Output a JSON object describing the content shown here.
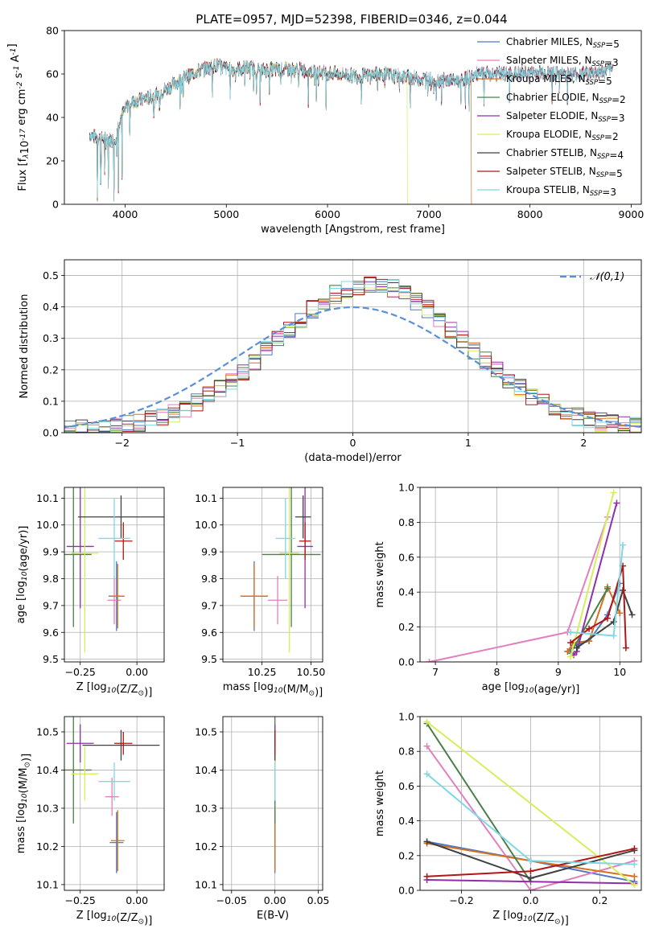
{
  "figure": {
    "title": "PLATE=0957, MJD=52398, FIBERID=0346, z=0.044"
  },
  "series_styles": [
    {
      "name": "Chabrier MILES, N$_{SSP}$=5",
      "color": "#4f78c7"
    },
    {
      "name": "Salpeter MILES, N$_{SSP}$=3",
      "color": "#e27fbf"
    },
    {
      "name": "Kroupa MILES, N$_{SSP}$=5",
      "color": "#d6701e"
    },
    {
      "name": "Chabrier ELODIE, N$_{SSP}$=2",
      "color": "#4a7f48"
    },
    {
      "name": "Salpeter ELODIE, N$_{SSP}$=3",
      "color": "#8f2faa"
    },
    {
      "name": "Kroupa ELODIE, N$_{SSP}$=2",
      "color": "#d4ef5a"
    },
    {
      "name": "Chabrier STELIB, N$_{SSP}$=4",
      "color": "#404040"
    },
    {
      "name": "Salpeter STELIB, N$_{SSP}$=5",
      "color": "#b01616"
    },
    {
      "name": "Kroupa STELIB, N$_{SSP}$=3",
      "color": "#7fd8e2"
    }
  ],
  "chart_data": [
    {
      "id": "spectrum",
      "type": "line",
      "title": "PLATE=0957, MJD=52398, FIBERID=0346, z=0.044",
      "xlabel": "wavelength [Angstrom, rest frame]",
      "ylabel": "Flux [f$_\\lambda$10$^{-17}$ erg cm$^{-2}$ s$^{-1}$ A$^{-1}$]",
      "xlim": [
        3400,
        9100
      ],
      "ylim": [
        0,
        80
      ],
      "xticks": [
        4000,
        5000,
        6000,
        7000,
        8000,
        9000
      ],
      "yticks": [
        0,
        20,
        40,
        60,
        80
      ],
      "legend": "top-right",
      "grid": false,
      "continuum_x": [
        3650,
        3700,
        3800,
        3900,
        3950,
        4050,
        4150,
        4300,
        4500,
        4700,
        4900,
        5050,
        5200,
        5350,
        5500,
        5700,
        5900,
        6100,
        6300,
        6500,
        6700,
        6900,
        7100,
        7300,
        7500,
        7700,
        7900,
        8100,
        8300,
        8500,
        8700,
        8820
      ],
      "continuum_y": [
        32,
        31,
        30,
        30,
        40,
        47,
        48,
        50,
        56,
        61,
        64,
        62,
        63,
        62,
        62,
        62,
        61,
        60,
        59,
        60,
        59,
        58,
        57,
        57,
        60,
        60,
        60,
        61,
        60,
        60,
        61,
        62
      ],
      "drops": [
        {
          "series": "Kroupa ELODIE, N$_{SSP}$=2",
          "x_start": 6790,
          "x_end": 9100,
          "y_after": 0
        },
        {
          "series": "Kroupa MILES, N$_{SSP}$=5",
          "x_start": 7420,
          "x_end": 9100,
          "y_after": 0
        }
      ]
    },
    {
      "id": "residuals",
      "type": "histogram",
      "xlabel": "(data-model)/error",
      "ylabel": "Normed distribution",
      "xlim": [
        -2.5,
        2.5
      ],
      "ylim": [
        0,
        0.55
      ],
      "xticks": [
        -2,
        -1,
        0,
        1,
        2
      ],
      "yticks": [
        0.0,
        0.1,
        0.2,
        0.3,
        0.4,
        0.5
      ],
      "grid": true,
      "bin_width": 0.1,
      "reference": {
        "name": "$\\mathcal{N}(0,1)$",
        "mean": 0,
        "sigma": 1,
        "color": "#5b8fd8",
        "legend": "top-right"
      }
    },
    {
      "id": "age_vs_Z",
      "type": "errorbar",
      "xlabel": "Z [log$_{10}$(Z/Z$_\\odot$)]",
      "ylabel": "age  [log$_{10}$(age/yr)]",
      "xlim": [
        -0.32,
        0.12
      ],
      "ylim": [
        9.49,
        10.14
      ],
      "xticks": [
        -0.25,
        0.0
      ],
      "yticks": [
        9.5,
        9.6,
        9.7,
        9.8,
        9.9,
        10.0,
        10.1
      ],
      "grid": true,
      "points": [
        {
          "series": "Chabrier MILES, N$_{SSP}$=5",
          "x": -0.09,
          "xerr": 0.035,
          "y": 9.735,
          "yerr": 0.13
        },
        {
          "series": "Salpeter MILES, N$_{SSP}$=3",
          "x": -0.1,
          "xerr": 0.03,
          "y": 9.72,
          "yerr": 0.09
        },
        {
          "series": "Kroupa MILES, N$_{SSP}$=5",
          "x": -0.085,
          "xerr": 0.03,
          "y": 9.735,
          "yerr": 0.12
        },
        {
          "series": "Chabrier ELODIE, N$_{SSP}$=2",
          "x": -0.28,
          "xerr": 0.08,
          "y": 9.89,
          "yerr": 0.27
        },
        {
          "series": "Salpeter ELODIE, N$_{SSP}$=3",
          "x": -0.25,
          "xerr": 0.06,
          "y": 9.92,
          "yerr": 0.23
        },
        {
          "series": "Kroupa ELODIE, N$_{SSP}$=2",
          "x": -0.23,
          "xerr": 0.06,
          "y": 9.895,
          "yerr": 0.37
        },
        {
          "series": "Chabrier STELIB, N$_{SSP}$=4",
          "x": -0.07,
          "xerr": 0.19,
          "y": 10.03,
          "yerr": 0.08
        },
        {
          "series": "Salpeter STELIB, N$_{SSP}$=5",
          "x": -0.06,
          "xerr": 0.04,
          "y": 9.94,
          "yerr": 0.07
        },
        {
          "series": "Kroupa STELIB, N$_{SSP}$=3",
          "x": -0.1,
          "xerr": 0.07,
          "y": 9.95,
          "yerr": 0.15
        }
      ]
    },
    {
      "id": "age_vs_mass",
      "type": "errorbar",
      "xlabel": "mass [log$_{10}$(M/M$_\\odot$)]",
      "ylabel": "",
      "xlim": [
        10.05,
        10.56
      ],
      "ylim": [
        9.49,
        10.14
      ],
      "xticks": [
        10.25,
        10.5
      ],
      "yticks": [
        9.5,
        9.6,
        9.7,
        9.8,
        9.9,
        10.0,
        10.1
      ],
      "grid": true,
      "points": [
        {
          "series": "Chabrier MILES, N$_{SSP}$=5",
          "x": 10.21,
          "xerr": 0.07,
          "y": 9.735,
          "yerr": 0.13
        },
        {
          "series": "Salpeter MILES, N$_{SSP}$=3",
          "x": 10.33,
          "xerr": 0.05,
          "y": 9.72,
          "yerr": 0.09
        },
        {
          "series": "Kroupa MILES, N$_{SSP}$=5",
          "x": 10.21,
          "xerr": 0.07,
          "y": 9.735,
          "yerr": 0.12
        },
        {
          "series": "Chabrier ELODIE, N$_{SSP}$=2",
          "x": 10.4,
          "xerr": 0.15,
          "y": 9.89,
          "yerr": 0.27
        },
        {
          "series": "Salpeter ELODIE, N$_{SSP}$=3",
          "x": 10.47,
          "xerr": 0.04,
          "y": 9.92,
          "yerr": 0.23
        },
        {
          "series": "Kroupa ELODIE, N$_{SSP}$=2",
          "x": 10.39,
          "xerr": 0.05,
          "y": 9.895,
          "yerr": 0.37
        },
        {
          "series": "Chabrier STELIB, N$_{SSP}$=4",
          "x": 10.46,
          "xerr": 0.04,
          "y": 10.03,
          "yerr": 0.08
        },
        {
          "series": "Salpeter STELIB, N$_{SSP}$=5",
          "x": 10.47,
          "xerr": 0.03,
          "y": 9.94,
          "yerr": 0.07
        },
        {
          "series": "Kroupa STELIB, N$_{SSP}$=3",
          "x": 10.37,
          "xerr": 0.05,
          "y": 9.95,
          "yerr": 0.15
        }
      ]
    },
    {
      "id": "massweight_vs_age",
      "type": "line",
      "xlabel": "age  [log$_{10}$(age/yr)]",
      "ylabel": "mass weight",
      "xlim": [
        6.75,
        10.35
      ],
      "ylim": [
        0,
        1
      ],
      "xticks": [
        7,
        8,
        9,
        10
      ],
      "yticks": [
        0.0,
        0.2,
        0.4,
        0.6,
        0.8,
        1.0
      ],
      "grid": true,
      "series": [
        {
          "name": "Chabrier MILES, N$_{SSP}$=5",
          "x": [
            9.15,
            9.3,
            9.5,
            9.8,
            10.0
          ],
          "y": [
            0.06,
            0.1,
            0.12,
            0.27,
            0.45
          ]
        },
        {
          "name": "Salpeter MILES, N$_{SSP}$=3",
          "x": [
            6.9,
            9.15,
            9.8
          ],
          "y": [
            0.0,
            0.17,
            0.83
          ]
        },
        {
          "name": "Kroupa MILES, N$_{SSP}$=5",
          "x": [
            9.15,
            9.25,
            9.5,
            9.8,
            10.0
          ],
          "y": [
            0.06,
            0.11,
            0.12,
            0.43,
            0.28
          ]
        },
        {
          "name": "Chabrier ELODIE, N$_{SSP}$=2",
          "x": [
            9.2,
            9.8
          ],
          "y": [
            0.05,
            0.42
          ]
        },
        {
          "name": "Salpeter ELODIE, N$_{SSP}$=3",
          "x": [
            9.25,
            9.3,
            9.95
          ],
          "y": [
            0.04,
            0.06,
            0.91
          ]
        },
        {
          "name": "Kroupa ELODIE, N$_{SSP}$=2",
          "x": [
            9.2,
            9.9
          ],
          "y": [
            0.03,
            0.97
          ]
        },
        {
          "name": "Chabrier STELIB, N$_{SSP}$=4",
          "x": [
            9.3,
            9.9,
            10.05,
            10.2
          ],
          "y": [
            0.08,
            0.23,
            0.41,
            0.27
          ]
        },
        {
          "name": "Salpeter STELIB, N$_{SSP}$=5",
          "x": [
            9.2,
            9.5,
            9.8,
            10.05,
            10.1
          ],
          "y": [
            0.11,
            0.19,
            0.25,
            0.55,
            0.08
          ]
        },
        {
          "name": "Kroupa STELIB, N$_{SSP}$=3",
          "x": [
            9.2,
            9.9,
            10.05
          ],
          "y": [
            0.17,
            0.15,
            0.67
          ]
        }
      ]
    },
    {
      "id": "mass_vs_Z",
      "type": "errorbar",
      "xlabel": "Z [log$_{10}$(Z/Z$_\\odot$)]",
      "ylabel": "mass [log$_{10}$(M/M$_\\odot$)]",
      "xlim": [
        -0.32,
        0.12
      ],
      "ylim": [
        10.085,
        10.54
      ],
      "xticks": [
        -0.25,
        0.0
      ],
      "yticks": [
        10.1,
        10.2,
        10.3,
        10.4,
        10.5
      ],
      "grid": true,
      "points": [
        {
          "series": "Chabrier MILES, N$_{SSP}$=5",
          "x": -0.09,
          "xerr": 0.03,
          "y": 10.21,
          "yerr": 0.08
        },
        {
          "series": "Salpeter MILES, N$_{SSP}$=3",
          "x": -0.11,
          "xerr": 0.03,
          "y": 10.33,
          "yerr": 0.05
        },
        {
          "series": "Kroupa MILES, N$_{SSP}$=5",
          "x": -0.085,
          "xerr": 0.03,
          "y": 10.215,
          "yerr": 0.08
        },
        {
          "series": "Chabrier ELODIE, N$_{SSP}$=2",
          "x": -0.28,
          "xerr": 0.08,
          "y": 10.4,
          "yerr": 0.14
        },
        {
          "series": "Salpeter ELODIE, N$_{SSP}$=3",
          "x": -0.25,
          "xerr": 0.06,
          "y": 10.47,
          "yerr": 0.05
        },
        {
          "series": "Kroupa ELODIE, N$_{SSP}$=2",
          "x": -0.23,
          "xerr": 0.06,
          "y": 10.39,
          "yerr": 0.07
        },
        {
          "series": "Chabrier STELIB, N$_{SSP}$=4",
          "x": -0.07,
          "xerr": 0.17,
          "y": 10.465,
          "yerr": 0.04
        },
        {
          "series": "Salpeter STELIB, N$_{SSP}$=5",
          "x": -0.06,
          "xerr": 0.04,
          "y": 10.47,
          "yerr": 0.03
        },
        {
          "series": "Kroupa STELIB, N$_{SSP}$=3",
          "x": -0.1,
          "xerr": 0.07,
          "y": 10.37,
          "yerr": 0.05
        }
      ]
    },
    {
      "id": "mass_vs_EBV",
      "type": "errorbar",
      "xlabel": "E(B-V)",
      "ylabel": "",
      "xlim": [
        -0.06,
        0.055
      ],
      "ylim": [
        10.085,
        10.54
      ],
      "xticks": [
        -0.05,
        0.0,
        0.05
      ],
      "yticks": [
        10.1,
        10.2,
        10.3,
        10.4,
        10.5
      ],
      "grid": true,
      "points": [
        {
          "series": "Chabrier MILES, N$_{SSP}$=5",
          "x": 0,
          "xerr": 0,
          "y": 10.21,
          "yerr": 0.08
        },
        {
          "series": "Salpeter MILES, N$_{SSP}$=3",
          "x": 0,
          "xerr": 0,
          "y": 10.33,
          "yerr": 0.05
        },
        {
          "series": "Kroupa MILES, N$_{SSP}$=5",
          "x": 0,
          "xerr": 0,
          "y": 10.215,
          "yerr": 0.08
        },
        {
          "series": "Chabrier ELODIE, N$_{SSP}$=2",
          "x": 0,
          "xerr": 0,
          "y": 10.4,
          "yerr": 0.14
        },
        {
          "series": "Salpeter ELODIE, N$_{SSP}$=3",
          "x": 0,
          "xerr": 0,
          "y": 10.47,
          "yerr": 0.05
        },
        {
          "series": "Kroupa ELODIE, N$_{SSP}$=2",
          "x": 0,
          "xerr": 0,
          "y": 10.39,
          "yerr": 0.07
        },
        {
          "series": "Chabrier STELIB, N$_{SSP}$=4",
          "x": 0,
          "xerr": 0,
          "y": 10.465,
          "yerr": 0.04
        },
        {
          "series": "Salpeter STELIB, N$_{SSP}$=5",
          "x": 0,
          "xerr": 0,
          "y": 10.47,
          "yerr": 0.03
        },
        {
          "series": "Kroupa STELIB, N$_{SSP}$=3",
          "x": 0,
          "xerr": 0,
          "y": 10.37,
          "yerr": 0.05
        }
      ]
    },
    {
      "id": "massweight_vs_Z",
      "type": "line",
      "xlabel": "Z [log$_{10}$(Z/Z$_\\odot$)]",
      "ylabel": "mass weight",
      "xlim": [
        -0.32,
        0.32
      ],
      "ylim": [
        0,
        1
      ],
      "xticks": [
        -0.2,
        0.0,
        0.2
      ],
      "yticks": [
        0.0,
        0.2,
        0.4,
        0.6,
        0.8,
        1.0
      ],
      "grid": true,
      "series": [
        {
          "name": "Chabrier MILES, N$_{SSP}$=5",
          "x": [
            -0.3,
            0.0,
            0.3
          ],
          "y": [
            0.28,
            0.17,
            0.05
          ]
        },
        {
          "name": "Salpeter MILES, N$_{SSP}$=3",
          "x": [
            -0.3,
            0.0,
            0.3
          ],
          "y": [
            0.83,
            0.0,
            0.17
          ]
        },
        {
          "name": "Kroupa MILES, N$_{SSP}$=5",
          "x": [
            -0.3,
            0.0,
            0.3
          ],
          "y": [
            0.27,
            0.17,
            0.08
          ]
        },
        {
          "name": "Chabrier ELODIE, N$_{SSP}$=2",
          "x": [
            -0.3,
            0.0
          ],
          "y": [
            0.96,
            0.05
          ]
        },
        {
          "name": "Salpeter ELODIE, N$_{SSP}$=3",
          "x": [
            -0.3,
            0.3
          ],
          "y": [
            0.06,
            0.04
          ]
        },
        {
          "name": "Kroupa ELODIE, N$_{SSP}$=2",
          "x": [
            -0.3,
            0.3
          ],
          "y": [
            0.97,
            0.03
          ]
        },
        {
          "name": "Chabrier STELIB, N$_{SSP}$=4",
          "x": [
            -0.3,
            0.0,
            0.3
          ],
          "y": [
            0.28,
            0.07,
            0.23
          ]
        },
        {
          "name": "Salpeter STELIB, N$_{SSP}$=5",
          "x": [
            -0.3,
            0.0,
            0.3
          ],
          "y": [
            0.08,
            0.11,
            0.24
          ]
        },
        {
          "name": "Kroupa STELIB, N$_{SSP}$=3",
          "x": [
            -0.3,
            0.0,
            0.3
          ],
          "y": [
            0.67,
            0.17,
            0.15
          ]
        }
      ]
    }
  ]
}
